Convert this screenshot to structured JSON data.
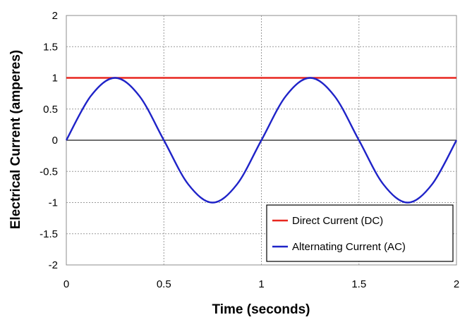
{
  "chart_data": {
    "type": "line",
    "title": "",
    "xlabel": "Time (seconds)",
    "ylabel": "Electrical Current (amperes)",
    "xlim": [
      0,
      2
    ],
    "ylim": [
      -2,
      2
    ],
    "xticks": [
      "0",
      "0.5",
      "1",
      "1.5",
      "2"
    ],
    "yticks": [
      "2",
      "1.5",
      "1",
      "0.5",
      "0",
      "-0.5",
      "-1",
      "-1.5",
      "-2"
    ],
    "grid": true,
    "legend_position": "bottom-right",
    "series": [
      {
        "name": "Direct Current (DC)",
        "color": "#e8271f",
        "x": [
          0,
          2
        ],
        "y": [
          1,
          1
        ]
      },
      {
        "name": "Alternating Current (AC)",
        "color": "#1f23c8",
        "x": [
          0,
          0.125,
          0.25,
          0.375,
          0.5,
          0.625,
          0.75,
          0.875,
          1,
          1.125,
          1.25,
          1.375,
          1.5,
          1.625,
          1.75,
          1.875,
          2
        ],
        "y": [
          0,
          0.707,
          1,
          0.707,
          0,
          -0.707,
          -1,
          -0.707,
          0,
          0.707,
          1,
          0.707,
          0,
          -0.707,
          -1,
          -0.707,
          0
        ]
      }
    ],
    "reference_line_color": "#404040"
  }
}
